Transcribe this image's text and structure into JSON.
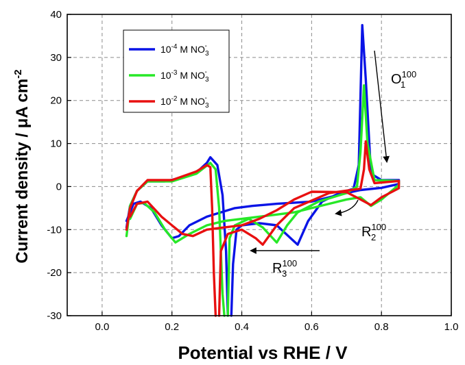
{
  "chart_data": {
    "type": "line",
    "title": "",
    "xlabel": "Potential vs RHE / V",
    "ylabel_prefix": "Current density / ",
    "ylabel_unit": "μA cm",
    "ylabel_exp": "-2",
    "xlim": [
      -0.1,
      1.0
    ],
    "ylim": [
      -30,
      40
    ],
    "x_ticks": [
      "0.0",
      "0.2",
      "0.4",
      "0.6",
      "0.8",
      "1.0"
    ],
    "y_ticks": [
      "40",
      "30",
      "20",
      "10",
      "0",
      "-10",
      "-20",
      "-30"
    ],
    "grid": true,
    "legend_position": "top-left",
    "series": [
      {
        "name": "10-4 M NO3-",
        "legend": {
          "base": "10",
          "exp": "-4",
          "text": " M NO",
          "sub": "3",
          "sup": "-"
        },
        "color": "#0a14e6",
        "points": [
          [
            0.07,
            -9.5
          ],
          [
            0.08,
            -4.5
          ],
          [
            0.1,
            -1
          ],
          [
            0.13,
            1.2
          ],
          [
            0.18,
            1.2
          ],
          [
            0.25,
            2.5
          ],
          [
            0.28,
            4
          ],
          [
            0.3,
            5.5
          ],
          [
            0.31,
            6.8
          ],
          [
            0.33,
            5
          ],
          [
            0.345,
            -2
          ],
          [
            0.355,
            -15
          ],
          [
            0.36,
            -30
          ],
          null,
          [
            0.37,
            -30
          ],
          [
            0.375,
            -18
          ],
          [
            0.385,
            -10
          ],
          [
            0.4,
            -9
          ],
          [
            0.45,
            -8.5
          ],
          [
            0.5,
            -9
          ],
          [
            0.54,
            -12
          ],
          [
            0.56,
            -13.5
          ],
          [
            0.59,
            -8
          ],
          [
            0.63,
            -3.5
          ],
          [
            0.68,
            -1.5
          ],
          [
            0.72,
            -0.5
          ],
          [
            0.735,
            5
          ],
          [
            0.745,
            37.5
          ],
          [
            0.755,
            25
          ],
          [
            0.77,
            3
          ],
          [
            0.8,
            1.5
          ],
          [
            0.85,
            1.5
          ],
          [
            0.85,
            0.6
          ],
          [
            0.8,
            -0.3
          ],
          [
            0.74,
            -0.8
          ],
          [
            0.7,
            -1.5
          ],
          [
            0.65,
            -2.5
          ],
          [
            0.6,
            -3.5
          ],
          [
            0.5,
            -4
          ],
          [
            0.43,
            -4.5
          ],
          [
            0.38,
            -5
          ],
          [
            0.3,
            -7
          ],
          [
            0.25,
            -9
          ],
          [
            0.22,
            -11.5
          ],
          [
            0.2,
            -12
          ],
          [
            0.17,
            -9
          ],
          [
            0.14,
            -5
          ],
          [
            0.11,
            -3.5
          ],
          [
            0.09,
            -4
          ],
          [
            0.07,
            -8
          ]
        ]
      },
      {
        "name": "10-3 M NO3-",
        "legend": {
          "base": "10",
          "exp": "-3",
          "text": " M NO",
          "sub": "3",
          "sup": "-"
        },
        "color": "#27e827",
        "points": [
          [
            0.07,
            -11.5
          ],
          [
            0.08,
            -4.5
          ],
          [
            0.1,
            -1
          ],
          [
            0.13,
            1.2
          ],
          [
            0.2,
            1.2
          ],
          [
            0.27,
            3
          ],
          [
            0.31,
            5.5
          ],
          [
            0.325,
            4
          ],
          [
            0.335,
            -5
          ],
          [
            0.345,
            -25
          ],
          [
            0.35,
            -30
          ],
          null,
          [
            0.36,
            -30
          ],
          [
            0.365,
            -12
          ],
          [
            0.38,
            -9
          ],
          [
            0.42,
            -7.5
          ],
          [
            0.46,
            -9.5
          ],
          [
            0.5,
            -13
          ],
          [
            0.53,
            -9
          ],
          [
            0.56,
            -6
          ],
          [
            0.62,
            -3.5
          ],
          [
            0.7,
            -1.5
          ],
          [
            0.73,
            0
          ],
          [
            0.74,
            8
          ],
          [
            0.75,
            23.5
          ],
          [
            0.76,
            10
          ],
          [
            0.78,
            1.5
          ],
          [
            0.85,
            1.3
          ],
          [
            0.85,
            0.4
          ],
          [
            0.8,
            -3
          ],
          [
            0.77,
            -4.5
          ],
          [
            0.74,
            -2.5
          ],
          [
            0.7,
            -3
          ],
          [
            0.65,
            -4
          ],
          [
            0.55,
            -6
          ],
          [
            0.5,
            -6.5
          ],
          [
            0.45,
            -7
          ],
          [
            0.4,
            -7.5
          ],
          [
            0.35,
            -8
          ],
          [
            0.3,
            -9
          ],
          [
            0.25,
            -11
          ],
          [
            0.21,
            -13
          ],
          [
            0.18,
            -10
          ],
          [
            0.15,
            -6
          ],
          [
            0.12,
            -3.8
          ],
          [
            0.1,
            -4
          ],
          [
            0.08,
            -7.5
          ]
        ]
      },
      {
        "name": "10-2 M NO3-",
        "legend": {
          "base": "10",
          "exp": "-2",
          "text": " M NO",
          "sub": "3",
          "sup": "-"
        },
        "color": "#e81010",
        "points": [
          [
            0.07,
            -10
          ],
          [
            0.08,
            -5
          ],
          [
            0.1,
            -1
          ],
          [
            0.13,
            1.5
          ],
          [
            0.2,
            1.5
          ],
          [
            0.27,
            3.5
          ],
          [
            0.3,
            5
          ],
          [
            0.31,
            4.5
          ],
          [
            0.315,
            -5
          ],
          [
            0.32,
            -20
          ],
          [
            0.325,
            -30
          ],
          null,
          [
            0.335,
            -30
          ],
          [
            0.34,
            -15
          ],
          [
            0.36,
            -11
          ],
          [
            0.4,
            -10
          ],
          [
            0.44,
            -12
          ],
          [
            0.46,
            -13.5
          ],
          [
            0.5,
            -9
          ],
          [
            0.55,
            -5
          ],
          [
            0.65,
            -1.5
          ],
          [
            0.74,
            -0.5
          ],
          [
            0.75,
            4
          ],
          [
            0.755,
            10.5
          ],
          [
            0.765,
            4
          ],
          [
            0.78,
            0.8
          ],
          [
            0.85,
            1.3
          ],
          [
            0.85,
            -0.4
          ],
          [
            0.8,
            -2.5
          ],
          [
            0.77,
            -4.3
          ],
          [
            0.74,
            -3
          ],
          [
            0.7,
            -1.3
          ],
          [
            0.6,
            -1.2
          ],
          [
            0.55,
            -3
          ],
          [
            0.5,
            -5.5
          ],
          [
            0.45,
            -7.5
          ],
          [
            0.4,
            -9
          ],
          [
            0.35,
            -9.5
          ],
          [
            0.3,
            -10
          ],
          [
            0.26,
            -11.5
          ],
          [
            0.23,
            -11
          ],
          [
            0.2,
            -9
          ],
          [
            0.17,
            -7
          ],
          [
            0.13,
            -3.5
          ],
          [
            0.1,
            -4
          ],
          [
            0.08,
            -7
          ]
        ]
      }
    ],
    "annotations": [
      {
        "id": "o1",
        "base": "O",
        "sub": "1",
        "sup": "100"
      },
      {
        "id": "r2",
        "base": "R",
        "sub": "2",
        "sup": "100"
      },
      {
        "id": "r3",
        "base": "R",
        "sub": "3",
        "sup": "100"
      }
    ]
  }
}
